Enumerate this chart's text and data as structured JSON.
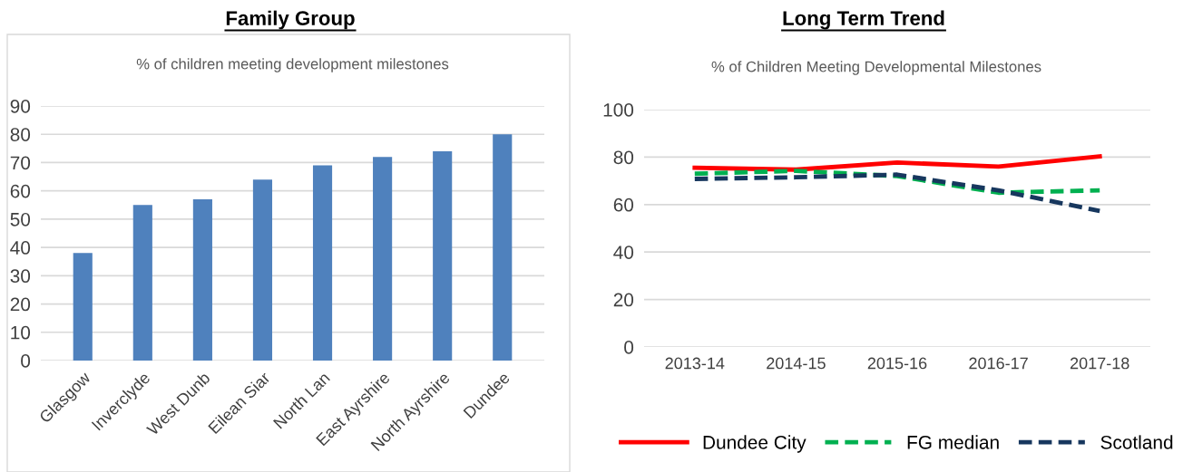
{
  "chart_data": [
    {
      "type": "bar",
      "title": "Family Group",
      "subtitle": "% of children meeting development milestones",
      "categories": [
        "Glasgow",
        "Inverclyde",
        "West Dunb",
        "Eilean Siar",
        "North Lan",
        "East Ayrshire",
        "North Ayrshire",
        "Dundee"
      ],
      "values": [
        38,
        55,
        57,
        64,
        69,
        72,
        74,
        80
      ],
      "color": "#4f81bd",
      "ylim": [
        0,
        90
      ],
      "yticks": [
        0,
        10,
        20,
        30,
        40,
        50,
        60,
        70,
        80,
        90
      ],
      "grid": "y"
    },
    {
      "type": "line",
      "title": "Long Term Trend",
      "subtitle": "% of Children Meeting Developmental Milestones",
      "categories": [
        "2013-14",
        "2014-15",
        "2015-16",
        "2016-17",
        "2017-18"
      ],
      "series": [
        {
          "name": "Dundee City",
          "color": "#ff0000",
          "line_style": "solid",
          "values": [
            75.5,
            74.7,
            77.7,
            76,
            80.3
          ]
        },
        {
          "name": "FG median",
          "color": "#00b050",
          "line_style": "dashed",
          "values": [
            73,
            74.2,
            72,
            65,
            66
          ]
        },
        {
          "name": "Scotland",
          "color": "#17375e",
          "line_style": "dashed",
          "values": [
            70.8,
            71.5,
            72.6,
            66,
            57.3
          ]
        }
      ],
      "ylim": [
        0,
        100
      ],
      "yticks": [
        0,
        20,
        40,
        60,
        80,
        100
      ],
      "grid": "y",
      "legend": "bottom"
    }
  ]
}
